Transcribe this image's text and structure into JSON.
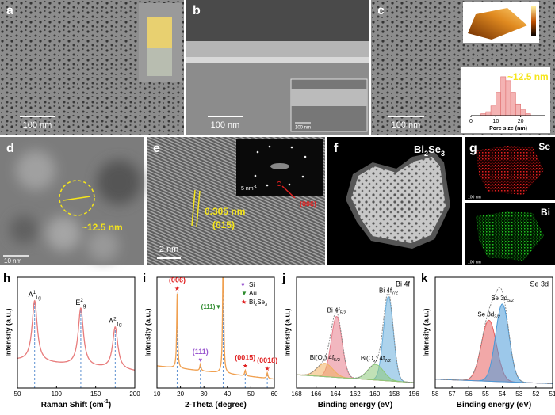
{
  "panels": {
    "a": {
      "letter": "a",
      "scale": "100 nm"
    },
    "b": {
      "letter": "b",
      "scale": "100 nm",
      "inset_scale": "100 nm"
    },
    "c": {
      "letter": "c",
      "scale": "100 nm",
      "size_label": "~12.5 nm",
      "hist": {
        "type": "histogram",
        "xlabel": "Pore size (nm)",
        "bins": [
          4,
          6,
          8,
          10,
          12,
          14,
          16,
          18,
          20,
          22,
          24
        ],
        "counts": [
          1,
          2,
          5,
          12,
          20,
          18,
          12,
          6,
          3,
          1
        ],
        "xlim": [
          0,
          30
        ],
        "xticks": [
          0,
          10,
          20
        ],
        "ylim": [
          0,
          22
        ],
        "color": "#f4b3b3"
      }
    },
    "d": {
      "letter": "d",
      "size_label": "~12.5 nm",
      "scale": "10 nm"
    },
    "e": {
      "letter": "e",
      "d_spacing": "0.305 nm",
      "plane": "(015)",
      "scale": "2 nm",
      "saed_scale": [
        {
          "text": "5 nm"
        },
        {
          "sup": "-1"
        }
      ],
      "saed_spot": "(006)"
    },
    "f": {
      "letter": "f",
      "label": [
        {
          "text": "Bi"
        },
        {
          "sub": "2"
        },
        {
          "text": "Se"
        },
        {
          "sub": "3"
        }
      ]
    },
    "g": {
      "letter": "g",
      "maps": [
        {
          "element": "Se",
          "scale": "100 nm"
        },
        {
          "element": "Bi",
          "scale": "100 nm"
        }
      ]
    }
  },
  "chart_data": [
    {
      "type": "spectrum",
      "letter": "h",
      "shape": "lorentzian",
      "color": "#e87c7c",
      "dashed": true,
      "xlabel": [
        {
          "text": "Raman Shift (cm"
        },
        {
          "sup": "-1"
        },
        {
          "text": ")"
        }
      ],
      "ylabel": "Intensity (a.u.)",
      "xlim": [
        50,
        200
      ],
      "xticks": [
        50,
        100,
        150,
        200
      ],
      "ylim": [
        0,
        100
      ],
      "baseline": [
        25,
        15
      ],
      "peaks": [
        {
          "center": 72,
          "height": 55,
          "width": 4,
          "label": [
            {
              "text": "A"
            },
            {
              "sup": "1"
            },
            {
              "sub": "1g"
            }
          ]
        },
        {
          "center": 131,
          "height": 52,
          "width": 4,
          "label": [
            {
              "text": "E"
            },
            {
              "sup": "2"
            },
            {
              "sub": "g"
            }
          ]
        },
        {
          "center": 175,
          "height": 38,
          "width": 4,
          "label": [
            {
              "text": "A"
            },
            {
              "sup": "2"
            },
            {
              "sub": "1g"
            }
          ]
        }
      ]
    },
    {
      "type": "spectrum",
      "letter": "i",
      "shape": "lorentzian",
      "color": "#f0a050",
      "dashed": true,
      "xlabel": [
        {
          "text": "2-Theta (degree)"
        }
      ],
      "ylabel": "Intensity (a.u.)",
      "xlim": [
        10,
        60
      ],
      "xticks": [
        10,
        20,
        30,
        40,
        50,
        60
      ],
      "ylim": [
        0,
        100
      ],
      "baseline": [
        20,
        8
      ],
      "legend": [
        {
          "symbol": "♥",
          "color": "#9b59d0",
          "name": [
            {
              "text": "Si"
            }
          ]
        },
        {
          "symbol": "▼",
          "color": "#2e8b2e",
          "name": [
            {
              "text": "Au"
            }
          ]
        },
        {
          "symbol": "★",
          "color": "#e02020",
          "name": [
            {
              "text": "Bi"
            },
            {
              "sub": "2"
            },
            {
              "text": "Se"
            },
            {
              "sub": "3"
            }
          ]
        }
      ],
      "peaks": [
        {
          "center": 18.6,
          "height": 68,
          "width": 0.25,
          "marker": "★",
          "label_color": "#e02020",
          "label": [
            {
              "text": "(006)"
            }
          ]
        },
        {
          "center": 28.5,
          "height": 6,
          "width": 0.3,
          "marker": "♥",
          "label_color": "#9b59d0",
          "label": [
            {
              "text": "(111)"
            }
          ]
        },
        {
          "center": 38.2,
          "height": 130,
          "width": 0.25,
          "marker": "▼",
          "label_color": "#2e8b2e",
          "label": [
            {
              "text": "(111)"
            }
          ]
        },
        {
          "center": 47.6,
          "height": 5,
          "width": 0.3,
          "marker": "★",
          "label_color": "#e02020",
          "label": [
            {
              "text": "(0015)"
            }
          ]
        },
        {
          "center": 57.0,
          "height": 5,
          "width": 0.3,
          "marker": "★",
          "label_color": "#e02020",
          "label": [
            {
              "text": "(0018)"
            }
          ]
        }
      ]
    },
    {
      "type": "spectrum",
      "letter": "j",
      "shape": "gaussian",
      "filled": true,
      "color": "#888888",
      "title": "Bi 4f",
      "xlabel": [
        {
          "text": "Binding energy (eV)"
        }
      ],
      "ylabel": "Intensity (a.u.)",
      "xlim": [
        168,
        156
      ],
      "xticks": [
        168,
        166,
        164,
        162,
        160,
        158,
        156
      ],
      "ylim": [
        0,
        100
      ],
      "baseline": [
        12,
        5
      ],
      "peaks": [
        {
          "center": 163.9,
          "height": 55,
          "width": 0.55,
          "fill": "#e87c8a",
          "label": [
            {
              "text": "Bi 4f"
            },
            {
              "sub": "5/2"
            }
          ]
        },
        {
          "center": 158.6,
          "height": 76,
          "width": 0.5,
          "fill": "#6aaedc",
          "label": [
            {
              "text": "Bi 4f"
            },
            {
              "sub": "7/2"
            }
          ]
        },
        {
          "center": 165.1,
          "height": 12,
          "width": 0.8,
          "fill": "#f0b060",
          "label": [
            {
              "text": "Bi(O"
            },
            {
              "sub": "x"
            },
            {
              "text": ") 4f"
            },
            {
              "sub": "5/2"
            }
          ]
        },
        {
          "center": 159.9,
          "height": 14,
          "width": 0.8,
          "fill": "#8cc87a",
          "label": [
            {
              "text": "Bi(O"
            },
            {
              "sub": "x"
            },
            {
              "text": ") 4f"
            },
            {
              "sub": "7/2"
            }
          ]
        }
      ]
    },
    {
      "type": "spectrum",
      "letter": "k",
      "shape": "gaussian",
      "filled": true,
      "color": "#888888",
      "title": "Se 3d",
      "xlabel": [
        {
          "text": "Binding energy (eV)"
        }
      ],
      "ylabel": "Intensity (a.u.)",
      "xlim": [
        58,
        51
      ],
      "xticks": [
        58,
        57,
        56,
        55,
        54,
        53,
        52,
        51
      ],
      "ylim": [
        0,
        100
      ],
      "baseline": [
        8,
        4
      ],
      "peaks": [
        {
          "center": 54.8,
          "height": 55,
          "width": 0.45,
          "fill": "#e86060",
          "label": [
            {
              "text": "Se 3d"
            },
            {
              "sub": "3/2"
            }
          ]
        },
        {
          "center": 54.0,
          "height": 70,
          "width": 0.4,
          "fill": "#4a9ad8",
          "label": [
            {
              "text": "Se 3d"
            },
            {
              "sub": "5/2"
            }
          ]
        }
      ]
    }
  ]
}
